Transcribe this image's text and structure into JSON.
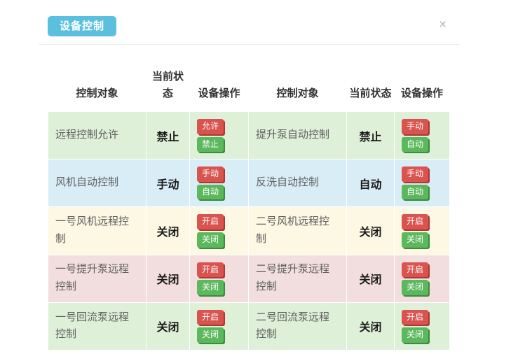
{
  "panel": {
    "title": "设备控制",
    "close_glyph": "×"
  },
  "table": {
    "headers": [
      "控制对象",
      "当前状态",
      "设备操作",
      "控制对象",
      "当前状态",
      "设备操作"
    ],
    "rows": [
      {
        "color": "#dff0d8",
        "left": {
          "label": "远程控制允许",
          "status": "禁止",
          "buttons": [
            {
              "label": "允许",
              "type": "red"
            },
            {
              "label": "禁止",
              "type": "green"
            }
          ]
        },
        "right": {
          "label": "提升泵自动控制",
          "status": "禁止",
          "buttons": [
            {
              "label": "手动",
              "type": "red"
            },
            {
              "label": "自动",
              "type": "green"
            }
          ]
        }
      },
      {
        "color": "#d9edf7",
        "left": {
          "label": "风机自动控制",
          "status": "手动",
          "buttons": [
            {
              "label": "手动",
              "type": "red"
            },
            {
              "label": "自动",
              "type": "green"
            }
          ]
        },
        "right": {
          "label": "反洗自动控制",
          "status": "自动",
          "buttons": [
            {
              "label": "手动",
              "type": "red"
            },
            {
              "label": "自动",
              "type": "green"
            }
          ]
        }
      },
      {
        "color": "#fcf8e3",
        "left": {
          "label": "一号风机远程控制",
          "status": "关闭",
          "buttons": [
            {
              "label": "开启",
              "type": "red"
            },
            {
              "label": "关闭",
              "type": "green"
            }
          ]
        },
        "right": {
          "label": "二号风机远程控制",
          "status": "关闭",
          "buttons": [
            {
              "label": "开启",
              "type": "red"
            },
            {
              "label": "关闭",
              "type": "green"
            }
          ]
        }
      },
      {
        "color": "#f2dede",
        "left": {
          "label": "一号提升泵远程控制",
          "status": "关闭",
          "buttons": [
            {
              "label": "开启",
              "type": "red"
            },
            {
              "label": "关闭",
              "type": "green"
            }
          ]
        },
        "right": {
          "label": "二号提升泵远程控制",
          "status": "关闭",
          "buttons": [
            {
              "label": "开启",
              "type": "red"
            },
            {
              "label": "关闭",
              "type": "green"
            }
          ]
        }
      },
      {
        "color": "#dff0d8",
        "left": {
          "label": "一号回流泵远程控制",
          "status": "关闭",
          "buttons": [
            {
              "label": "开启",
              "type": "red"
            },
            {
              "label": "关闭",
              "type": "green"
            }
          ]
        },
        "right": {
          "label": "二号回流泵远程控制",
          "status": "关闭",
          "buttons": [
            {
              "label": "开启",
              "type": "red"
            },
            {
              "label": "关闭",
              "type": "green"
            }
          ]
        }
      }
    ]
  },
  "colors": {
    "title_bg": "#5bc0de",
    "btn_red": "#d9534f",
    "btn_green": "#5cb85c",
    "row_green": "#dff0d8",
    "row_blue": "#d9edf7",
    "row_yellow": "#fcf8e3",
    "row_pink": "#f2dede"
  }
}
